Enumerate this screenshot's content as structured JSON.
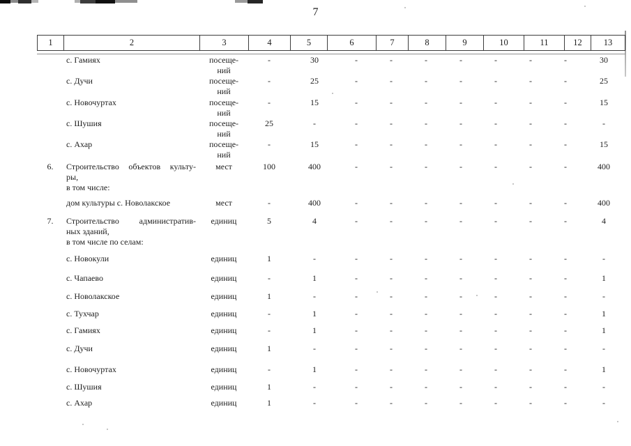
{
  "page_number": "7",
  "colors": {
    "ink": "#1c1c1c",
    "rule": "#3c3c3c"
  },
  "table": {
    "header": [
      "1",
      "2",
      "3",
      "4",
      "5",
      "6",
      "7",
      "8",
      "9",
      "10",
      "11",
      "12",
      "13"
    ],
    "rows": [
      {
        "num": "",
        "name": [
          "с. Гамиях"
        ],
        "justify": false,
        "unit": [
          "посеще-",
          "ний"
        ],
        "values": [
          "-",
          "30",
          "-",
          "-",
          "-",
          "-",
          "-",
          "-",
          "-",
          "30"
        ]
      },
      {
        "num": "",
        "name": [
          "с. Дучи"
        ],
        "justify": false,
        "unit": [
          "посеще-",
          "ний"
        ],
        "values": [
          "-",
          "25",
          "-",
          "-",
          "-",
          "-",
          "-",
          "-",
          "-",
          "25"
        ]
      },
      {
        "num": "",
        "name": [
          "с. Новочуртах"
        ],
        "justify": false,
        "unit": [
          "посеще-",
          "ний"
        ],
        "values": [
          "-",
          "15",
          "-",
          "-",
          "-",
          "-",
          "-",
          "-",
          "-",
          "15"
        ]
      },
      {
        "num": "",
        "name": [
          "с. Шушия"
        ],
        "justify": false,
        "unit": [
          "посеще-",
          "ний"
        ],
        "values": [
          "25",
          "-",
          "-",
          "-",
          "-",
          "-",
          "-",
          "-",
          "-",
          "-"
        ]
      },
      {
        "num": "",
        "name": [
          "с. Ахар"
        ],
        "justify": false,
        "unit": [
          "посеще-",
          "ний"
        ],
        "values": [
          "-",
          "15",
          "-",
          "-",
          "-",
          "-",
          "-",
          "-",
          "-",
          "15"
        ]
      },
      {
        "num": "6.",
        "name": [
          "Строительство объектов культу-",
          "ры,",
          "в том числе:"
        ],
        "justify": true,
        "unit": [
          "мест"
        ],
        "values": [
          "100",
          "400",
          "-",
          "-",
          "-",
          "-",
          "-",
          "-",
          "-",
          "400"
        ]
      },
      {
        "num": "",
        "name": [
          "дом культуры с. Новолакское"
        ],
        "justify": false,
        "unit": [
          "мест"
        ],
        "values": [
          "-",
          "400",
          "-",
          "-",
          "-",
          "-",
          "-",
          "-",
          "-",
          "400"
        ]
      },
      {
        "num": "7.",
        "name": [
          "Строительство административ-",
          "ных зданий,",
          "в том числе по селам:"
        ],
        "justify": true,
        "unit": [
          "единиц"
        ],
        "values": [
          "5",
          "4",
          "-",
          "-",
          "-",
          "-",
          "-",
          "-",
          "-",
          "4"
        ]
      },
      {
        "num": "",
        "name": [
          "с. Новокули"
        ],
        "justify": false,
        "unit": [
          "единиц"
        ],
        "values": [
          "1",
          "-",
          "-",
          "-",
          "-",
          "-",
          "-",
          "-",
          "-",
          "-"
        ]
      },
      {
        "num": "",
        "name": [
          "с. Чапаево"
        ],
        "justify": false,
        "unit": [
          "единиц"
        ],
        "values": [
          "-",
          "1",
          "-",
          "-",
          "-",
          "-",
          "-",
          "-",
          "-",
          "1"
        ]
      },
      {
        "num": "",
        "name": [
          "с. Новолакское"
        ],
        "justify": false,
        "unit": [
          "единиц"
        ],
        "values": [
          "1",
          "-",
          "-",
          "-",
          "-",
          "-",
          "-",
          "-",
          "-",
          "-"
        ]
      },
      {
        "num": "",
        "name": [
          "с. Тухчар"
        ],
        "justify": false,
        "unit": [
          "единиц"
        ],
        "values": [
          "-",
          "1",
          "-",
          "-",
          "-",
          "-",
          "-",
          "-",
          "-",
          "1"
        ]
      },
      {
        "num": "",
        "name": [
          "с. Гамиях"
        ],
        "justify": false,
        "unit": [
          "единиц"
        ],
        "values": [
          "-",
          "1",
          "-",
          "-",
          "-",
          "-",
          "-",
          "-",
          "-",
          "1"
        ]
      },
      {
        "num": "",
        "name": [
          "с. Дучи"
        ],
        "justify": false,
        "unit": [
          "единиц"
        ],
        "values": [
          "1",
          "-",
          "-",
          "-",
          "-",
          "-",
          "-",
          "-",
          "-",
          "-"
        ]
      },
      {
        "num": "",
        "name": [
          "с. Новочуртах"
        ],
        "justify": false,
        "unit": [
          "единиц"
        ],
        "values": [
          "-",
          "1",
          "-",
          "-",
          "-",
          "-",
          "-",
          "-",
          "-",
          "1"
        ]
      },
      {
        "num": "",
        "name": [
          "с. Шушия"
        ],
        "justify": false,
        "unit": [
          "единиц"
        ],
        "values": [
          "1",
          "-",
          "-",
          "-",
          "-",
          "-",
          "-",
          "-",
          "-",
          "-"
        ]
      },
      {
        "num": "",
        "name": [
          "с. Ахар"
        ],
        "justify": false,
        "unit": [
          "единиц"
        ],
        "values": [
          "1",
          "-",
          "-",
          "-",
          "-",
          "-",
          "-",
          "-",
          "-",
          "-"
        ]
      }
    ]
  }
}
